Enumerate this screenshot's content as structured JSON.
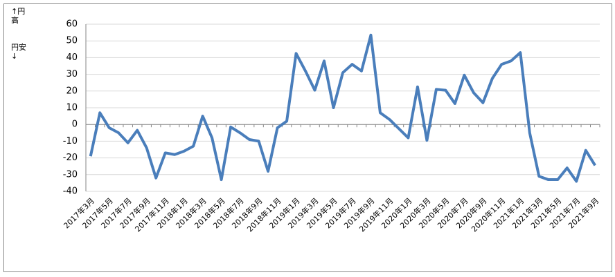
{
  "chart_data": {
    "type": "line",
    "annotations": [
      "↑円高",
      "円安↓"
    ],
    "categories": [
      "2017年3月",
      null,
      "2017年5月",
      null,
      "2017年7月",
      null,
      "2017年9月",
      null,
      "2017年11月",
      null,
      "2018年1月",
      null,
      "2018年3月",
      null,
      "2018年5月",
      null,
      "2018年7月",
      null,
      "2018年9月",
      null,
      "2018年11月",
      null,
      "2019年1月",
      null,
      "2019年3月",
      null,
      "2019年5月",
      null,
      "2019年7月",
      null,
      "2019年9月",
      null,
      "2019年11月",
      null,
      "2020年1月",
      null,
      "2020年3月",
      null,
      "2020年5月",
      null,
      "2020年7月",
      null,
      "2020年9月",
      null,
      "2020年11月",
      null,
      "2021年1月",
      null,
      "2021年3月",
      null,
      "2021年5月",
      null,
      "2021年7月",
      null,
      "2021年9月"
    ],
    "series": [
      {
        "color": "#4a7ebb",
        "values": [
          -19,
          7,
          -2,
          -5,
          -11,
          -3.5,
          -14,
          -32,
          -17,
          -18,
          -16,
          -13,
          5,
          -8,
          -33,
          -1.5,
          -5,
          -9,
          -10,
          -28,
          -2,
          2,
          42.5,
          32,
          20.5,
          38,
          10,
          31,
          36,
          32,
          53.5,
          7,
          3,
          -2.5,
          -8,
          22.5,
          -9.5,
          21,
          20.5,
          12.5,
          29.5,
          19,
          13,
          27.5,
          36,
          38,
          43,
          -5,
          -31,
          -33,
          -33,
          -26,
          -34,
          -15.5,
          -24.5
        ]
      }
    ],
    "ylim": [
      -40,
      60
    ],
    "yticks": [
      -40,
      -30,
      -20,
      -10,
      0,
      10,
      20,
      30,
      40,
      50,
      60
    ],
    "grid": true
  }
}
